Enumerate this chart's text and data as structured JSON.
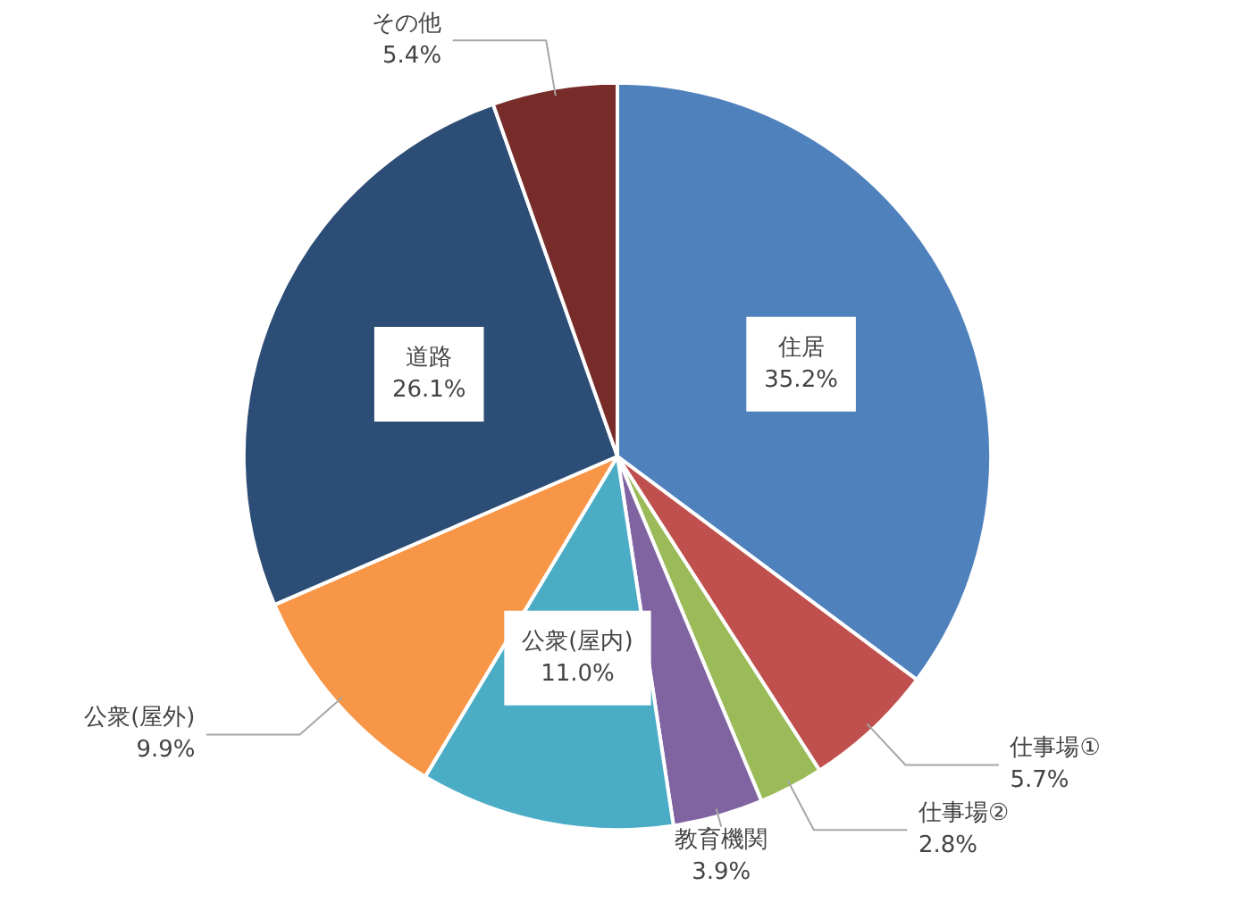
{
  "chart_data": {
    "type": "pie",
    "categories": [
      "住居",
      "仕事場①",
      "仕事場②",
      "教育機関",
      "公衆(屋内)",
      "公衆(屋外)",
      "道路",
      "その他"
    ],
    "values": [
      35.2,
      5.7,
      2.8,
      3.9,
      11.0,
      9.9,
      26.1,
      5.4
    ],
    "value_labels": [
      "35.2%",
      "5.7%",
      "2.8%",
      "3.9%",
      "11.0%",
      "9.9%",
      "26.1%",
      "5.4%"
    ],
    "colors": [
      "#4f81bd",
      "#c0504d",
      "#9bbb59",
      "#8064a2",
      "#4bacc6",
      "#f79646",
      "#2c4d75",
      "#772c2a"
    ]
  }
}
